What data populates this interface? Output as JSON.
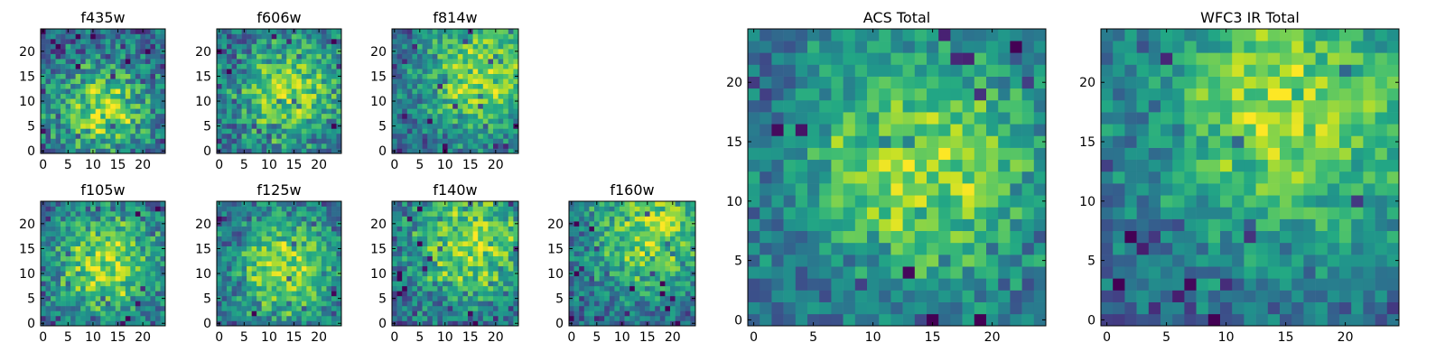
{
  "colormap": "viridis",
  "colors": {
    "viridis_low": "#440154",
    "viridis_mid": "#21918c",
    "viridis_high": "#fde725",
    "axes_frame": "#000000",
    "background": "#ffffff"
  },
  "chart_data": [
    {
      "type": "heatmap",
      "title": "f435w",
      "grid": [
        25,
        25
      ],
      "xlim": [
        0,
        25
      ],
      "ylim": [
        0,
        25
      ],
      "x_ticks": [
        0,
        5,
        10,
        15,
        20
      ],
      "y_ticks": [
        0,
        5,
        10,
        15,
        20
      ],
      "peak": {
        "x": 12,
        "y": 8
      },
      "peak_spread": 7,
      "noise": 0.42,
      "seed": 11
    },
    {
      "type": "heatmap",
      "title": "f606w",
      "grid": [
        25,
        25
      ],
      "xlim": [
        0,
        25
      ],
      "ylim": [
        0,
        25
      ],
      "x_ticks": [
        0,
        5,
        10,
        15,
        20
      ],
      "y_ticks": [
        0,
        5,
        10,
        15,
        20
      ],
      "peak": {
        "x": 14,
        "y": 12
      },
      "peak_spread": 8,
      "noise": 0.38,
      "seed": 23
    },
    {
      "type": "heatmap",
      "title": "f814w",
      "grid": [
        25,
        25
      ],
      "xlim": [
        0,
        25
      ],
      "ylim": [
        0,
        25
      ],
      "x_ticks": [
        0,
        5,
        10,
        15,
        20
      ],
      "y_ticks": [
        0,
        5,
        10,
        15,
        20
      ],
      "peak": {
        "x": 17,
        "y": 15
      },
      "peak_spread": 9,
      "noise": 0.32,
      "seed": 37
    },
    {
      "type": "heatmap",
      "title": "f105w",
      "grid": [
        25,
        25
      ],
      "xlim": [
        0,
        25
      ],
      "ylim": [
        0,
        25
      ],
      "x_ticks": [
        0,
        5,
        10,
        15,
        20
      ],
      "y_ticks": [
        0,
        5,
        10,
        15,
        20
      ],
      "peak": {
        "x": 13,
        "y": 12
      },
      "peak_spread": 8,
      "noise": 0.36,
      "seed": 41
    },
    {
      "type": "heatmap",
      "title": "f125w",
      "grid": [
        25,
        25
      ],
      "xlim": [
        0,
        25
      ],
      "ylim": [
        0,
        25
      ],
      "x_ticks": [
        0,
        5,
        10,
        15,
        20
      ],
      "y_ticks": [
        0,
        5,
        10,
        15,
        20
      ],
      "peak": {
        "x": 13,
        "y": 11
      },
      "peak_spread": 8,
      "noise": 0.34,
      "seed": 53
    },
    {
      "type": "heatmap",
      "title": "f140w",
      "grid": [
        25,
        25
      ],
      "xlim": [
        0,
        25
      ],
      "ylim": [
        0,
        25
      ],
      "x_ticks": [
        0,
        5,
        10,
        15,
        20
      ],
      "y_ticks": [
        0,
        5,
        10,
        15,
        20
      ],
      "peak": {
        "x": 15,
        "y": 16
      },
      "peak_spread": 9,
      "noise": 0.36,
      "seed": 67
    },
    {
      "type": "heatmap",
      "title": "f160w",
      "grid": [
        25,
        25
      ],
      "xlim": [
        0,
        25
      ],
      "ylim": [
        0,
        25
      ],
      "x_ticks": [
        0,
        5,
        10,
        15,
        20
      ],
      "y_ticks": [
        0,
        5,
        10,
        15,
        20
      ],
      "peak": {
        "x": 16,
        "y": 18
      },
      "peak_spread": 9,
      "noise": 0.33,
      "seed": 71
    },
    {
      "type": "heatmap",
      "title": "ACS Total",
      "grid": [
        25,
        25
      ],
      "xlim": [
        0,
        25
      ],
      "ylim": [
        0,
        25
      ],
      "x_ticks": [
        0,
        5,
        10,
        15,
        20
      ],
      "y_ticks": [
        0,
        5,
        10,
        15,
        20
      ],
      "peak": {
        "x": 14,
        "y": 13
      },
      "peak_spread": 8,
      "noise": 0.28,
      "seed": 83
    },
    {
      "type": "heatmap",
      "title": "WFC3 IR Total",
      "grid": [
        25,
        25
      ],
      "xlim": [
        0,
        25
      ],
      "ylim": [
        0,
        25
      ],
      "x_ticks": [
        0,
        5,
        10,
        15,
        20
      ],
      "y_ticks": [
        0,
        5,
        10,
        15,
        20
      ],
      "peak": {
        "x": 16,
        "y": 18
      },
      "peak_spread": 9,
      "noise": 0.26,
      "seed": 97
    }
  ]
}
